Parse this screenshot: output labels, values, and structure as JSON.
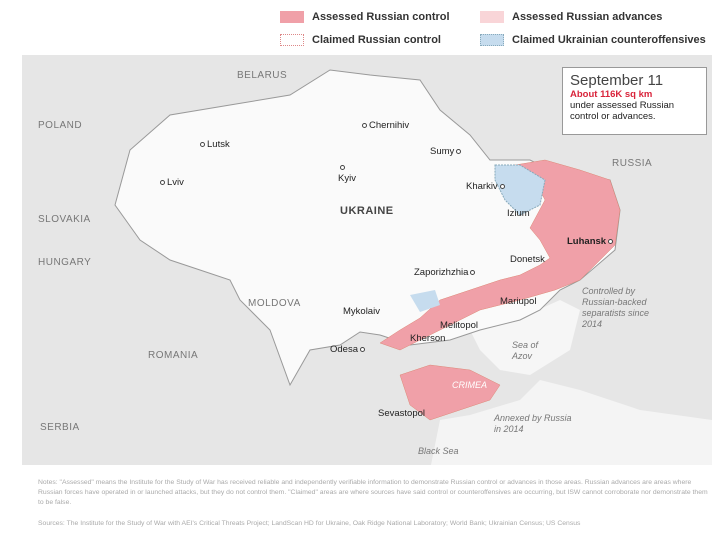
{
  "legend": [
    {
      "label": "Assessed Russian control",
      "color": "#f0a0a8"
    },
    {
      "label": "Assessed Russian advances",
      "color": "#f9d5d8"
    },
    {
      "label": "Claimed Russian control",
      "color": "#ffffff"
    },
    {
      "label": "Claimed Ukrainian counteroffensives",
      "color": "#c6dcee"
    }
  ],
  "infobox": {
    "date": "September 11",
    "area": "About 116K sq km",
    "caption": "under assessed Russian control or advances.",
    "accent": "#d9243b"
  },
  "countries": {
    "belarus": "BELARUS",
    "poland": "POLAND",
    "slovakia": "SLOVAKIA",
    "hungary": "HUNGARY",
    "moldova": "MOLDOVA",
    "romania": "ROMANIA",
    "serbia": "SERBIA",
    "russia": "RUSSIA",
    "ukraine": "UKRAINE"
  },
  "cities": {
    "lutsk": "Lutsk",
    "lviv": "Lviv",
    "chernihiv": "Chernihiv",
    "kyiv": "Kyiv",
    "sumy": "Sumy",
    "kharkiv": "Kharkiv",
    "izium": "Izium",
    "luhansk": "Luhansk",
    "donetsk": "Donetsk",
    "zaporizhzhia": "Zaporizhzhia",
    "mariupol": "Mariupol",
    "mykolaiv": "Mykolaiv",
    "melitopol": "Melitopol",
    "kherson": "Kherson",
    "odesa": "Odesa",
    "sevastopol": "Sevastopol"
  },
  "annotations": {
    "crimea": "CRIMEA",
    "separatists": "Controlled by Russian-backed separatists since 2014",
    "annexed": "Annexed by Russia in 2014",
    "azov": "Sea of Azov",
    "black_sea": "Black Sea"
  },
  "notes": "Notes: \"Assessed\" means the Institute for the Study of War has received reliable and independently verifiable information to demonstrate Russian control or advances in those areas. Russian advances are areas where Russian forces have operated in or launched attacks, but they do not control them. \"Claimed\" areas are where sources have said control or counteroffensives are occurring, but ISW cannot corroborate nor demonstrate them to be false.",
  "sources": "Sources: The Institute for the Study of War with AEI's Critical Threats Project; LandScan HD for Ukraine, Oak Ridge National Laboratory; World Bank; Ukrainian Census; US Census"
}
